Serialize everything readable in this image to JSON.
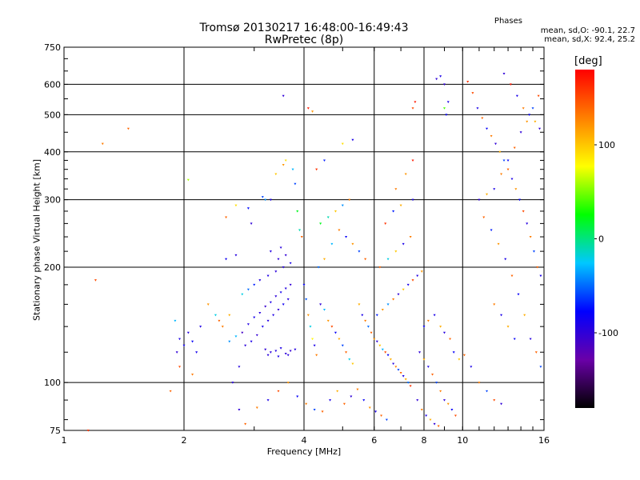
{
  "chart_data": {
    "type": "scatter",
    "title": "Tromsø 20130217 16:48:00-16:49:43",
    "subtitle": "RwPretec (8p)",
    "xlabel": "Frequency [MHz]",
    "ylabel": "Stationary phase Virtual Height [km]",
    "xscale": "log",
    "yscale": "log",
    "xlim": [
      1,
      16
    ],
    "ylim": [
      75,
      750
    ],
    "xticks": [
      1,
      2,
      4,
      6,
      8,
      10,
      16
    ],
    "yticks": [
      75,
      100,
      200,
      300,
      400,
      500,
      600,
      750
    ],
    "grid": true,
    "phase_info": {
      "title": "Phases",
      "line1": "mean, sd,O: -90.1, 22.7",
      "line2": "mean, sd,X:  92.4, 25.2"
    },
    "colorbar": {
      "label": "[deg]",
      "range": [
        -180,
        180
      ],
      "ticks": [
        -100,
        0,
        100
      ],
      "colors": [
        "#000000",
        "#6a00a8",
        "#0000ff",
        "#00c8ff",
        "#00ff00",
        "#ffff00",
        "#ff8000",
        "#ff0000"
      ]
    },
    "points": [
      [
        2.75,
        110,
        -95
      ],
      [
        2.85,
        125,
        -98
      ],
      [
        2.95,
        128,
        -90
      ],
      [
        3.05,
        133,
        -102
      ],
      [
        3.15,
        140,
        -88
      ],
      [
        3.25,
        145,
        -95
      ],
      [
        3.35,
        150,
        -92
      ],
      [
        3.45,
        155,
        -100
      ],
      [
        3.55,
        160,
        -85
      ],
      [
        3.65,
        165,
        -97
      ],
      [
        2.8,
        135,
        -110
      ],
      [
        2.9,
        142,
        -93
      ],
      [
        3.0,
        148,
        -88
      ],
      [
        3.1,
        152,
        -96
      ],
      [
        3.2,
        158,
        -105
      ],
      [
        3.3,
        162,
        -91
      ],
      [
        3.4,
        168,
        -99
      ],
      [
        3.5,
        172,
        -87
      ],
      [
        3.6,
        176,
        -94
      ],
      [
        3.7,
        180,
        -101
      ],
      [
        3.2,
        122,
        -100
      ],
      [
        3.3,
        120,
        -98
      ],
      [
        3.4,
        121,
        -94
      ],
      [
        3.5,
        123,
        -92
      ],
      [
        3.6,
        119,
        -99
      ],
      [
        3.7,
        121,
        -103
      ],
      [
        3.8,
        122,
        -95
      ],
      [
        3.25,
        118,
        -97
      ],
      [
        3.45,
        117,
        -90
      ],
      [
        3.65,
        118,
        -96
      ],
      [
        3.1,
        185,
        -95
      ],
      [
        3.25,
        190,
        -92
      ],
      [
        3.4,
        195,
        -98
      ],
      [
        3.55,
        200,
        -96
      ],
      [
        3.7,
        205,
        -90
      ],
      [
        3.45,
        210,
        -99
      ],
      [
        3.6,
        215,
        -101
      ],
      [
        3.3,
        220,
        -94
      ],
      [
        3.5,
        225,
        -97
      ],
      [
        3.15,
        305,
        -60
      ],
      [
        2.6,
        128,
        -40
      ],
      [
        2.7,
        132,
        -30
      ],
      [
        2.5,
        140,
        130
      ],
      [
        2.6,
        150,
        110
      ],
      [
        2.8,
        170,
        -20
      ],
      [
        2.9,
        175,
        -50
      ],
      [
        3.0,
        180,
        -70
      ],
      [
        2.55,
        210,
        -85
      ],
      [
        2.7,
        215,
        -95
      ],
      [
        2.95,
        260,
        -100
      ],
      [
        2.55,
        270,
        140
      ],
      [
        2.7,
        290,
        90
      ],
      [
        2.9,
        285,
        -75
      ],
      [
        3.2,
        300,
        -40
      ],
      [
        3.3,
        300,
        -90
      ],
      [
        3.4,
        350,
        100
      ],
      [
        3.55,
        370,
        120
      ],
      [
        3.6,
        380,
        90
      ],
      [
        3.75,
        360,
        -30
      ],
      [
        3.8,
        330,
        -60
      ],
      [
        3.85,
        280,
        20
      ],
      [
        3.9,
        250,
        -10
      ],
      [
        3.95,
        240,
        140
      ],
      [
        4.0,
        180,
        -80
      ],
      [
        4.05,
        165,
        -55
      ],
      [
        4.1,
        150,
        120
      ],
      [
        4.15,
        140,
        -20
      ],
      [
        4.2,
        130,
        80
      ],
      [
        4.25,
        125,
        -90
      ],
      [
        4.3,
        118,
        130
      ],
      [
        4.4,
        160,
        -100
      ],
      [
        4.5,
        155,
        -30
      ],
      [
        4.6,
        145,
        120
      ],
      [
        4.7,
        140,
        150
      ],
      [
        4.8,
        135,
        -80
      ],
      [
        4.9,
        130,
        110
      ],
      [
        5.0,
        125,
        -60
      ],
      [
        5.1,
        120,
        140
      ],
      [
        5.2,
        115,
        -20
      ],
      [
        5.3,
        112,
        100
      ],
      [
        4.35,
        200,
        -50
      ],
      [
        4.5,
        210,
        110
      ],
      [
        4.7,
        230,
        -30
      ],
      [
        4.9,
        250,
        130
      ],
      [
        5.1,
        240,
        -80
      ],
      [
        5.3,
        230,
        120
      ],
      [
        5.5,
        220,
        -60
      ],
      [
        5.7,
        210,
        140
      ],
      [
        4.4,
        260,
        20
      ],
      [
        4.6,
        270,
        -10
      ],
      [
        4.8,
        280,
        100
      ],
      [
        5.0,
        290,
        -40
      ],
      [
        5.2,
        300,
        130
      ],
      [
        4.3,
        360,
        160
      ],
      [
        4.5,
        380,
        -70
      ],
      [
        5.0,
        420,
        90
      ],
      [
        5.3,
        430,
        -90
      ],
      [
        4.1,
        520,
        170
      ],
      [
        4.2,
        510,
        120
      ],
      [
        3.55,
        560,
        -100
      ],
      [
        5.5,
        160,
        110
      ],
      [
        5.6,
        150,
        -90
      ],
      [
        5.7,
        145,
        130
      ],
      [
        5.8,
        140,
        -50
      ],
      [
        5.9,
        135,
        140
      ],
      [
        6.0,
        130,
        120
      ],
      [
        6.1,
        128,
        -100
      ],
      [
        6.2,
        125,
        100
      ],
      [
        6.3,
        122,
        -30
      ],
      [
        6.4,
        120,
        150
      ],
      [
        6.5,
        118,
        -80
      ],
      [
        6.6,
        115,
        110
      ],
      [
        6.7,
        112,
        -95
      ],
      [
        6.8,
        110,
        130
      ],
      [
        6.9,
        108,
        -60
      ],
      [
        7.0,
        106,
        140
      ],
      [
        7.1,
        104,
        -90
      ],
      [
        7.2,
        102,
        110
      ],
      [
        7.3,
        100,
        -50
      ],
      [
        7.4,
        98,
        160
      ],
      [
        6.1,
        150,
        -70
      ],
      [
        6.3,
        155,
        120
      ],
      [
        6.5,
        160,
        -40
      ],
      [
        6.7,
        165,
        130
      ],
      [
        6.9,
        170,
        -100
      ],
      [
        7.1,
        175,
        100
      ],
      [
        7.3,
        180,
        -90
      ],
      [
        7.5,
        185,
        150
      ],
      [
        7.7,
        190,
        -95
      ],
      [
        7.9,
        195,
        120
      ],
      [
        6.2,
        200,
        140
      ],
      [
        6.5,
        210,
        -20
      ],
      [
        6.8,
        220,
        100
      ],
      [
        7.1,
        230,
        -90
      ],
      [
        7.4,
        240,
        130
      ],
      [
        6.4,
        260,
        160
      ],
      [
        6.7,
        280,
        -70
      ],
      [
        7.0,
        290,
        110
      ],
      [
        7.5,
        300,
        -90
      ],
      [
        6.8,
        320,
        130
      ],
      [
        7.2,
        350,
        120
      ],
      [
        7.5,
        380,
        170
      ],
      [
        7.6,
        540,
        170
      ],
      [
        7.5,
        520,
        150
      ],
      [
        8.6,
        620,
        -100
      ],
      [
        8.8,
        630,
        -90
      ],
      [
        9.0,
        600,
        -100
      ],
      [
        9.2,
        540,
        -90
      ],
      [
        9.0,
        520,
        40
      ],
      [
        9.1,
        500,
        -80
      ],
      [
        7.8,
        120,
        -100
      ],
      [
        8.0,
        115,
        110
      ],
      [
        8.2,
        110,
        -90
      ],
      [
        8.4,
        105,
        140
      ],
      [
        8.6,
        100,
        -60
      ],
      [
        8.8,
        95,
        130
      ],
      [
        9.0,
        90,
        -100
      ],
      [
        9.2,
        88,
        120
      ],
      [
        9.4,
        85,
        -80
      ],
      [
        9.6,
        82,
        150
      ],
      [
        7.7,
        90,
        -100
      ],
      [
        7.9,
        85,
        130
      ],
      [
        8.1,
        82,
        -90
      ],
      [
        8.3,
        80,
        110
      ],
      [
        8.5,
        78,
        -100
      ],
      [
        8.7,
        77,
        140
      ],
      [
        8.0,
        140,
        -80
      ],
      [
        8.2,
        145,
        130
      ],
      [
        8.5,
        150,
        -90
      ],
      [
        8.8,
        140,
        110
      ],
      [
        9.0,
        135,
        -95
      ],
      [
        9.3,
        130,
        140
      ],
      [
        9.5,
        120,
        -80
      ],
      [
        9.8,
        115,
        100
      ],
      [
        10.1,
        118,
        140
      ],
      [
        10.5,
        110,
        -90
      ],
      [
        11.0,
        100,
        130
      ],
      [
        11.5,
        95,
        -60
      ],
      [
        12.0,
        90,
        150
      ],
      [
        12.5,
        88,
        -100
      ],
      [
        10.3,
        610,
        160
      ],
      [
        10.6,
        570,
        150
      ],
      [
        10.9,
        520,
        -90
      ],
      [
        11.2,
        490,
        140
      ],
      [
        11.5,
        460,
        -80
      ],
      [
        11.8,
        440,
        130
      ],
      [
        12.1,
        420,
        -100
      ],
      [
        12.4,
        400,
        110
      ],
      [
        12.7,
        380,
        -60
      ],
      [
        13.0,
        360,
        140
      ],
      [
        13.3,
        340,
        -90
      ],
      [
        13.6,
        320,
        120
      ],
      [
        13.9,
        300,
        -80
      ],
      [
        14.2,
        280,
        150
      ],
      [
        14.5,
        260,
        -95
      ],
      [
        14.8,
        240,
        130
      ],
      [
        15.1,
        220,
        -60
      ],
      [
        15.4,
        200,
        140
      ],
      [
        15.7,
        190,
        -90
      ],
      [
        11.0,
        300,
        -100
      ],
      [
        11.5,
        310,
        110
      ],
      [
        12.0,
        320,
        -90
      ],
      [
        12.5,
        350,
        130
      ],
      [
        13.0,
        380,
        -80
      ],
      [
        13.5,
        410,
        140
      ],
      [
        14.0,
        450,
        -100
      ],
      [
        14.5,
        480,
        120
      ],
      [
        15.0,
        520,
        -60
      ],
      [
        15.5,
        560,
        150
      ],
      [
        12.7,
        640,
        -100
      ],
      [
        13.2,
        600,
        170
      ],
      [
        13.7,
        560,
        -90
      ],
      [
        14.2,
        520,
        130
      ],
      [
        14.7,
        500,
        -80
      ],
      [
        15.2,
        480,
        110
      ],
      [
        15.6,
        460,
        -100
      ],
      [
        11.3,
        270,
        140
      ],
      [
        11.8,
        250,
        -70
      ],
      [
        12.3,
        230,
        120
      ],
      [
        12.8,
        210,
        -90
      ],
      [
        13.3,
        190,
        140
      ],
      [
        13.8,
        170,
        -80
      ],
      [
        14.3,
        150,
        110
      ],
      [
        14.8,
        130,
        -95
      ],
      [
        15.3,
        120,
        140
      ],
      [
        15.7,
        110,
        -60
      ],
      [
        12.0,
        160,
        130
      ],
      [
        12.5,
        150,
        -90
      ],
      [
        13.0,
        140,
        110
      ],
      [
        13.5,
        130,
        -80
      ],
      [
        1.25,
        420,
        130
      ],
      [
        1.45,
        460,
        140
      ],
      [
        1.2,
        185,
        150
      ],
      [
        1.15,
        75,
        160
      ],
      [
        1.85,
        95,
        140
      ],
      [
        1.95,
        110,
        150
      ],
      [
        2.05,
        338,
        60
      ],
      [
        2.1,
        105,
        130
      ],
      [
        1.9,
        145,
        -30
      ],
      [
        1.95,
        130,
        -90
      ],
      [
        2.0,
        125,
        -85
      ],
      [
        2.05,
        135,
        -95
      ],
      [
        2.1,
        128,
        -80
      ],
      [
        2.15,
        120,
        -88
      ],
      [
        2.2,
        140,
        -92
      ],
      [
        1.92,
        120,
        -100
      ],
      [
        2.3,
        160,
        120
      ],
      [
        2.4,
        150,
        -20
      ],
      [
        2.45,
        145,
        140
      ],
      [
        2.65,
        100,
        -95
      ],
      [
        2.75,
        85,
        -100
      ],
      [
        2.85,
        78,
        140
      ],
      [
        3.05,
        86,
        130
      ],
      [
        3.25,
        90,
        -90
      ],
      [
        3.45,
        95,
        150
      ],
      [
        3.65,
        100,
        120
      ],
      [
        3.85,
        92,
        -80
      ],
      [
        4.05,
        88,
        130
      ],
      [
        4.25,
        85,
        -60
      ],
      [
        4.45,
        84,
        140
      ],
      [
        4.65,
        90,
        -90
      ],
      [
        4.85,
        95,
        110
      ],
      [
        5.05,
        88,
        140
      ],
      [
        5.25,
        92,
        -100
      ],
      [
        5.45,
        96,
        130
      ],
      [
        5.65,
        90,
        -80
      ],
      [
        5.85,
        86,
        120
      ],
      [
        6.05,
        84,
        -90
      ],
      [
        6.25,
        82,
        140
      ],
      [
        6.45,
        80,
        -60
      ]
    ]
  }
}
